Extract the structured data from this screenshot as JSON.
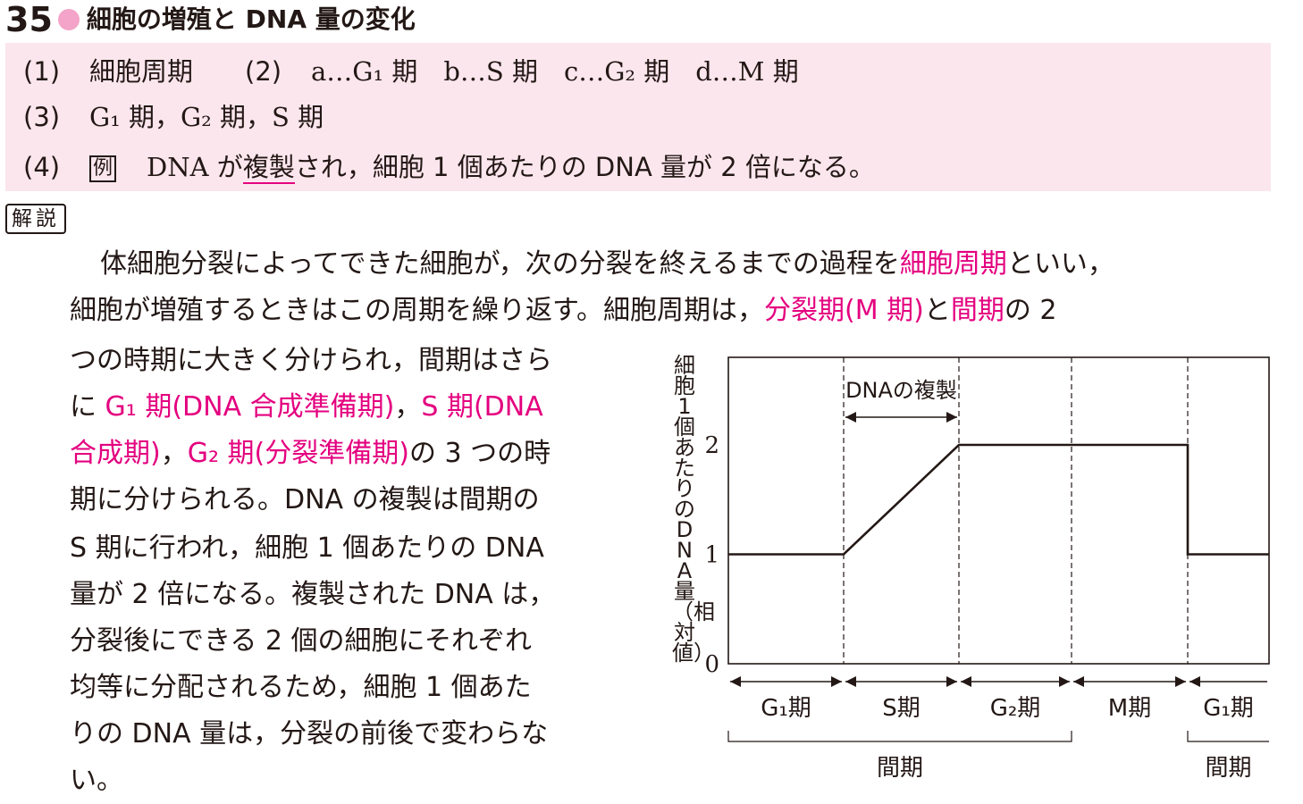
{
  "header": {
    "number": "35",
    "title": "細胞の増殖と DNA 量の変化"
  },
  "answers": {
    "q1_no": "(1)",
    "q1_text": "細胞周期",
    "q2_no": "(2)",
    "q2_text": "a…G₁ 期　b…S 期　c…G₂ 期　d…M 期",
    "q3_no": "(3)",
    "q3_text": "G₁ 期，G₂ 期，S 期",
    "q4_no": "(4)",
    "q4_example": "例",
    "q4_text_a": "DNA が",
    "q4_text_b": "複製",
    "q4_text_c": "され，細胞 1 個あたりの DNA 量が 2 倍になる。"
  },
  "explanation": {
    "label": "解説",
    "l1a": "体細胞分裂によってできた細胞が，次の分裂を終えるまでの過程を",
    "l1b": "細胞周期",
    "l1c": "といい，",
    "l2a": "細胞が増殖するときはこの周期を繰り返す。細胞周期は，",
    "l2b": "分裂期(M 期)",
    "l2c": "と",
    "l2d": "間期",
    "l2e": "の 2",
    "l3": "つの時期に大きく分けられ，間期はさら",
    "l4a": "に ",
    "l4b": "G₁ 期(DNA 合成準備期)",
    "l4c": "，",
    "l4d": "S 期(DNA",
    "l5a": "合成期)",
    "l5b": "，",
    "l5c": "G₂ 期(分裂準備期)",
    "l5d": "の 3 つの時",
    "l6": "期に分けられる。DNA の複製は間期の",
    "l7": "S 期に行われ，細胞 1 個あたりの DNA",
    "l8": "量が 2 倍になる。複製された DNA は，",
    "l9": "分裂後にできる 2 個の細胞にそれぞれ",
    "l10": "均等に分配されるため，細胞 1 個あた",
    "l11": "りの DNA 量は，分裂の前後で変わらな",
    "l12": "い。"
  },
  "chart_data": {
    "type": "line",
    "ylabel": "細胞1個あたりのDNA量（相対値）",
    "yticks": [
      "0",
      "1",
      "2"
    ],
    "ylim": [
      0,
      2.8
    ],
    "annotation": "DNAの複製",
    "phases": [
      "G₁期",
      "S期",
      "G₂期",
      "M期",
      "G₁期"
    ],
    "phase_bounds": [
      0,
      1,
      2,
      3,
      4,
      4.7
    ],
    "brackets": [
      "間期",
      "間期"
    ],
    "x": [
      0,
      1,
      2,
      4,
      4,
      4.7
    ],
    "y": [
      1,
      1,
      2,
      2,
      1,
      1
    ]
  }
}
